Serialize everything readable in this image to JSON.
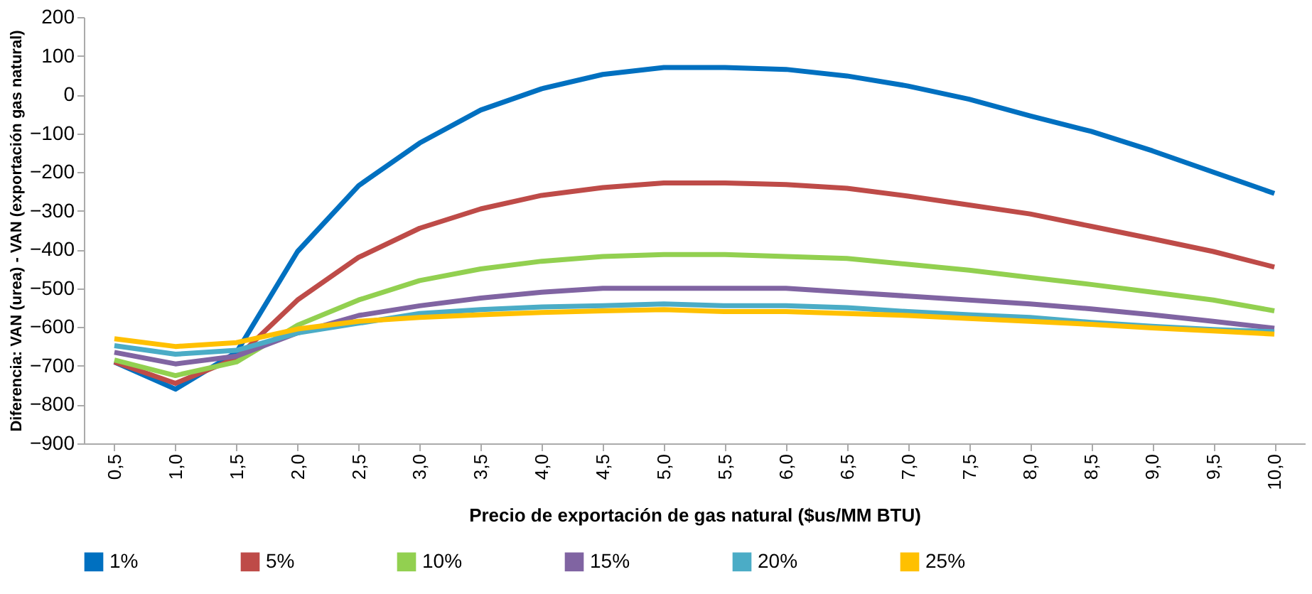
{
  "chart_data": {
    "type": "line",
    "xlabel": "Precio de exportación de gas natural ($us/MM BTU)",
    "ylabel": "Diferencia: VAN (urea) - VAN (exportación gas natural)",
    "categories": [
      "0,5",
      "1,0",
      "1,5",
      "2,0",
      "2,5",
      "3,0",
      "3,5",
      "4,0",
      "4,5",
      "5,0",
      "5,5",
      "6,0",
      "6,5",
      "7,0",
      "7,5",
      "8,0",
      "8,5",
      "9,0",
      "9,5",
      "10,0"
    ],
    "series": [
      {
        "name": "1%",
        "color": "#0070c0",
        "values": [
          -690,
          -760,
          -665,
          -405,
          -235,
          -125,
          -40,
          15,
          52,
          70,
          70,
          65,
          48,
          22,
          -12,
          -55,
          -95,
          -145,
          -200,
          -255
        ]
      },
      {
        "name": "5%",
        "color": "#be4b48",
        "values": [
          -690,
          -745,
          -680,
          -530,
          -420,
          -345,
          -295,
          -260,
          -240,
          -228,
          -228,
          -232,
          -242,
          -262,
          -285,
          -308,
          -340,
          -372,
          -405,
          -445
        ]
      },
      {
        "name": "10%",
        "color": "#92d050",
        "values": [
          -685,
          -725,
          -690,
          -595,
          -530,
          -480,
          -450,
          -430,
          -418,
          -413,
          -413,
          -418,
          -423,
          -438,
          -453,
          -472,
          -490,
          -510,
          -530,
          -558
        ]
      },
      {
        "name": "15%",
        "color": "#8064a2",
        "values": [
          -665,
          -695,
          -675,
          -615,
          -570,
          -545,
          -525,
          -510,
          -500,
          -500,
          -500,
          -500,
          -510,
          -520,
          -530,
          -540,
          -553,
          -568,
          -585,
          -603
        ]
      },
      {
        "name": "20%",
        "color": "#4bacc6",
        "values": [
          -648,
          -670,
          -660,
          -615,
          -590,
          -565,
          -555,
          -548,
          -545,
          -540,
          -545,
          -545,
          -550,
          -560,
          -568,
          -575,
          -588,
          -598,
          -606,
          -612
        ]
      },
      {
        "name": "25%",
        "color": "#ffc000",
        "values": [
          -630,
          -650,
          -640,
          -605,
          -585,
          -575,
          -568,
          -562,
          -558,
          -555,
          -560,
          -560,
          -565,
          -570,
          -578,
          -585,
          -593,
          -602,
          -610,
          -618
        ]
      }
    ],
    "ylim": [
      -900,
      200
    ],
    "yticks": [
      -900,
      -800,
      -700,
      -600,
      -500,
      -400,
      -300,
      -200,
      -100,
      0,
      100,
      200
    ],
    "grid": false,
    "legend": "bottom",
    "line_style": "solid",
    "marker": "none"
  }
}
